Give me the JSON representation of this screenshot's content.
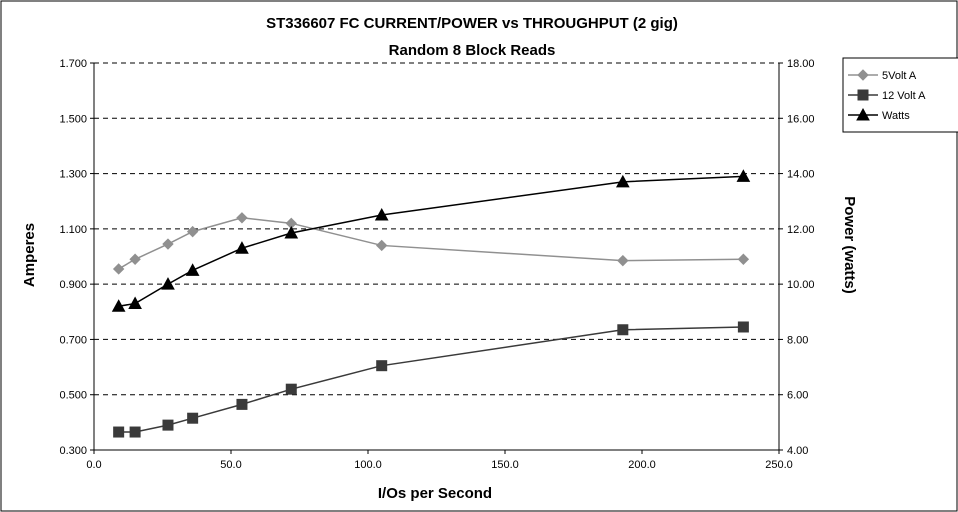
{
  "chart_data": {
    "type": "line",
    "title": "ST336607 FC CURRENT/POWER vs THROUGHPUT (2 gig)",
    "subtitle": "Random 8 Block Reads",
    "xlabel": "I/Os per Second",
    "ylabel_left": "Amperes",
    "ylabel_right": "Power (watts)",
    "xlim": [
      0,
      250
    ],
    "ylim_left": [
      0.3,
      1.7
    ],
    "ylim_right": [
      4,
      18
    ],
    "x_ticks": [
      "0.0",
      "50.0",
      "100.0",
      "150.0",
      "200.0",
      "250.0"
    ],
    "y_left_ticks": [
      "0.300",
      "0.500",
      "0.700",
      "0.900",
      "1.100",
      "1.300",
      "1.500",
      "1.700"
    ],
    "y_right_ticks": [
      "4.00",
      "6.00",
      "8.00",
      "10.00",
      "12.00",
      "14.00",
      "16.00",
      "18.00"
    ],
    "grid": "horizontal dashed",
    "legend_position": "top-right outside",
    "series": [
      {
        "name": "5Volt A",
        "axis": "left",
        "marker": "diamond",
        "color": "#909090",
        "points": [
          [
            9,
            0.955
          ],
          [
            15,
            0.99
          ],
          [
            27,
            1.045
          ],
          [
            36,
            1.09
          ],
          [
            54,
            1.14
          ],
          [
            72,
            1.12
          ],
          [
            105,
            1.04
          ],
          [
            193,
            0.985
          ],
          [
            237,
            0.99
          ]
        ]
      },
      {
        "name": "12 Volt A",
        "axis": "left",
        "marker": "square",
        "color": "#3a3a3a",
        "points": [
          [
            9,
            0.365
          ],
          [
            15,
            0.365
          ],
          [
            27,
            0.39
          ],
          [
            36,
            0.415
          ],
          [
            54,
            0.465
          ],
          [
            72,
            0.52
          ],
          [
            105,
            0.605
          ],
          [
            193,
            0.735
          ],
          [
            237,
            0.745
          ]
        ]
      },
      {
        "name": "Watts",
        "axis": "right",
        "marker": "triangle",
        "color": "#000000",
        "points": [
          [
            9,
            9.2
          ],
          [
            15,
            9.3
          ],
          [
            27,
            10.0
          ],
          [
            36,
            10.5
          ],
          [
            54,
            11.3
          ],
          [
            72,
            11.85
          ],
          [
            105,
            12.5
          ],
          [
            193,
            13.7
          ],
          [
            237,
            13.9
          ]
        ]
      }
    ]
  }
}
